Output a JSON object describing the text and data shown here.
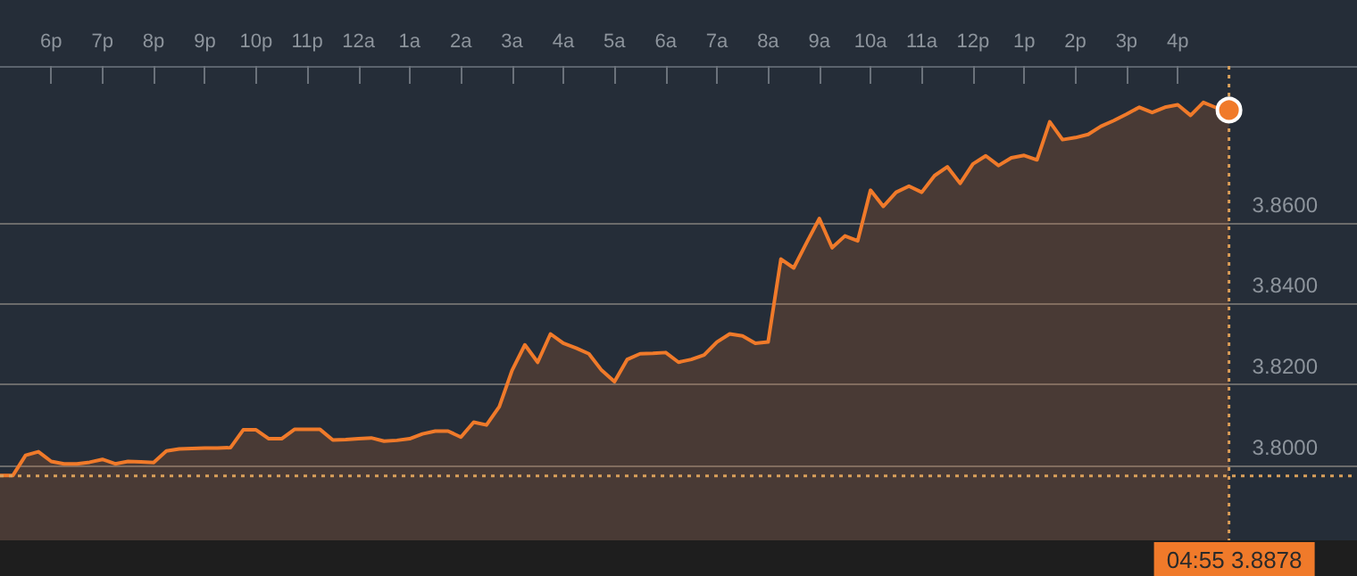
{
  "chart_data": {
    "type": "area",
    "categories": [
      null,
      null,
      null,
      null,
      "6p",
      null,
      null,
      null,
      "7p",
      null,
      null,
      null,
      "8p",
      null,
      null,
      null,
      "9p",
      null,
      null,
      null,
      "10p",
      null,
      null,
      null,
      "11p",
      null,
      null,
      null,
      "12a",
      null,
      null,
      null,
      "1a",
      null,
      null,
      null,
      "2a",
      null,
      null,
      null,
      "3a",
      null,
      null,
      null,
      "4a",
      null,
      null,
      null,
      "5a",
      null,
      null,
      null,
      "6a",
      null,
      null,
      null,
      "7a",
      null,
      null,
      null,
      "8a",
      null,
      null,
      null,
      "9a",
      null,
      null,
      null,
      "10a",
      null,
      null,
      null,
      "11a",
      null,
      null,
      null,
      "12p",
      null,
      null,
      null,
      "1p",
      null,
      null,
      null,
      "2p",
      null,
      null,
      null,
      "3p",
      null,
      null,
      null,
      "4p",
      null,
      null,
      null,
      null,
      null,
      null,
      null,
      null,
      null,
      null,
      null,
      null,
      null,
      null
    ],
    "series": [
      {
        "color": "#f07a2a",
        "values": [
          3.7975,
          3.7975,
          3.8025,
          3.8034,
          3.801,
          3.8004,
          3.8004,
          3.8008,
          3.8015,
          3.8004,
          3.801,
          3.8009,
          3.8007,
          3.8036,
          3.8041,
          3.8042,
          3.8043,
          3.8043,
          3.8044,
          3.8088,
          3.8088,
          3.8066,
          3.8066,
          3.8089,
          3.8089,
          3.8089,
          3.8063,
          3.8064,
          3.8066,
          3.8068,
          3.806,
          3.8062,
          3.8066,
          3.8078,
          3.8085,
          3.8085,
          3.807,
          3.8107,
          3.81,
          3.8145,
          3.8235,
          3.8298,
          3.8255,
          3.8325,
          3.8302,
          3.829,
          3.8276,
          3.8235,
          3.8207,
          3.8262,
          3.8276,
          3.8277,
          3.8279,
          3.8255,
          3.8262,
          3.8273,
          3.8305,
          3.8325,
          3.832,
          3.8302,
          3.8305,
          3.851,
          3.8488,
          3.855,
          3.861,
          3.8538,
          3.8567,
          3.8555,
          3.868,
          3.864,
          3.8675,
          3.869,
          3.8675,
          3.8716,
          3.8738,
          3.8697,
          3.8745,
          3.8765,
          3.8741,
          3.876,
          3.8766,
          3.8755,
          3.8849,
          3.8805,
          3.881,
          3.8818,
          3.8838,
          3.8852,
          3.8868,
          3.8885,
          3.8872,
          3.8885,
          3.8891,
          3.8865,
          3.8897,
          3.8884,
          3.8878,
          null,
          null,
          null,
          null,
          null,
          null,
          null,
          null,
          null,
          null
        ]
      }
    ],
    "ylim": [
      3.7815,
      3.915
    ],
    "yticks": [
      {
        "value": 3.8,
        "label": "3.8000"
      },
      {
        "value": 3.82,
        "label": "3.8200"
      },
      {
        "value": 3.84,
        "label": "3.8400"
      },
      {
        "value": 3.86,
        "label": "3.8600"
      }
    ],
    "grid": "y",
    "line_style": "solid",
    "ref_lines": [
      {
        "axis": "y",
        "value": 3.7974,
        "color": "#d9a05b",
        "line_style": "dotted"
      }
    ],
    "annotations": [
      "04:55 3.8878"
    ]
  }
}
